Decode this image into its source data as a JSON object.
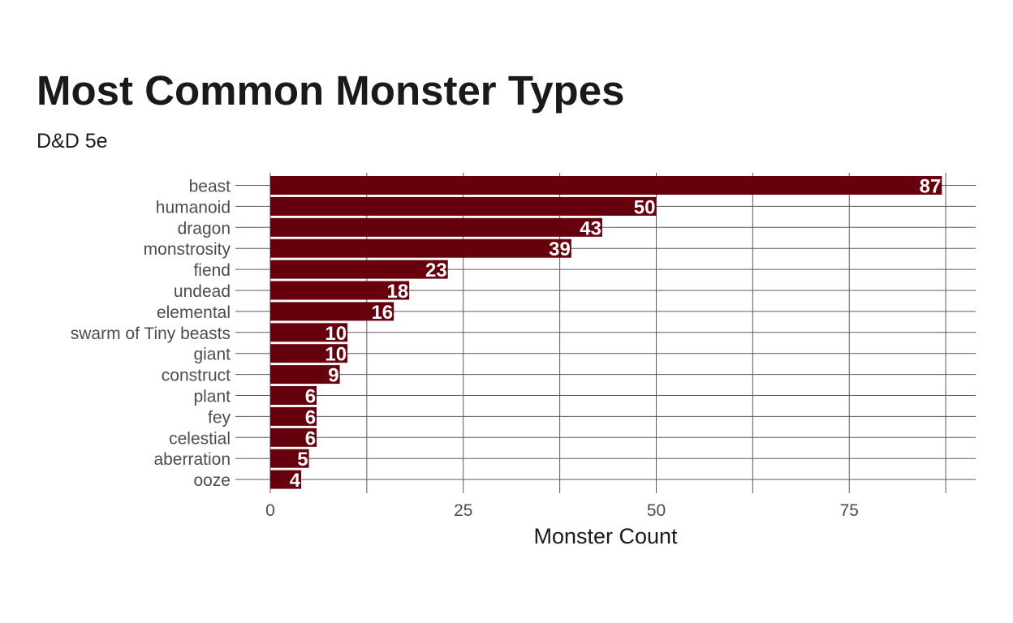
{
  "chart_data": {
    "type": "bar",
    "orientation": "horizontal",
    "title": "Most Common Monster Types",
    "subtitle": "D&D 5e",
    "xlabel": "Monster Count",
    "ylabel": "",
    "categories": [
      "beast",
      "humanoid",
      "dragon",
      "monstrosity",
      "fiend",
      "undead",
      "elemental",
      "swarm of Tiny beasts",
      "giant",
      "construct",
      "plant",
      "fey",
      "celestial",
      "aberration",
      "ooze"
    ],
    "values": [
      87,
      50,
      43,
      39,
      23,
      18,
      16,
      10,
      10,
      9,
      6,
      6,
      6,
      5,
      4
    ],
    "x_ticks": [
      0,
      25,
      50,
      75
    ],
    "xlim": [
      0,
      91
    ],
    "grid": true,
    "legend": "none",
    "bar_color": "#67000d",
    "data_label_color": "#ffffff"
  }
}
